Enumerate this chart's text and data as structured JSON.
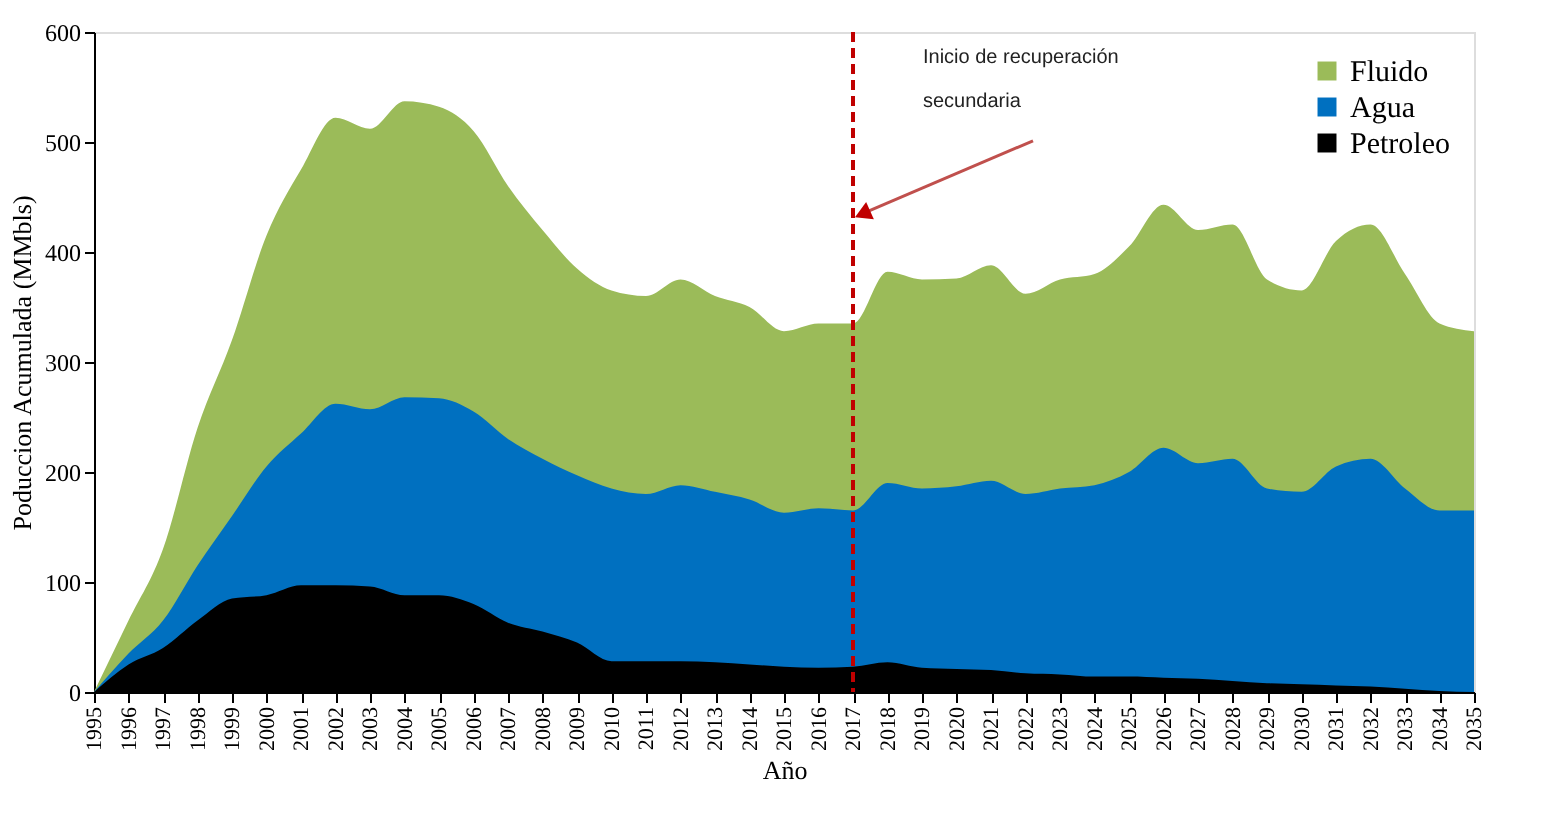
{
  "chart_data": {
    "type": "area",
    "xlabel": "Año",
    "ylabel": "Poduccion Acumulada (MMbls)",
    "categories": [
      "1995",
      "1996",
      "1997",
      "1998",
      "1999",
      "2000",
      "2001",
      "2002",
      "2003",
      "2004",
      "2005",
      "2006",
      "2007",
      "2008",
      "2009",
      "2010",
      "2011",
      "2012",
      "2013",
      "2014",
      "2015",
      "2016",
      "2017",
      "2018",
      "2019",
      "2020",
      "2021",
      "2022",
      "2023",
      "2024",
      "2025",
      "2026",
      "2027",
      "2028",
      "2029",
      "2030",
      "2031",
      "2032",
      "2033",
      "2034",
      "2035"
    ],
    "series": [
      {
        "name": "Fluido",
        "color": "#9bbb59",
        "values": [
          0,
          65,
          130,
          240,
          320,
          415,
          475,
          522,
          512,
          537,
          532,
          510,
          460,
          420,
          385,
          365,
          360,
          375,
          360,
          350,
          328,
          335,
          335,
          382,
          375,
          376,
          388,
          362,
          375,
          380,
          405,
          443,
          420,
          425,
          375,
          365,
          410,
          425,
          380,
          335,
          328
        ]
      },
      {
        "name": "Agua",
        "color": "#0070c0",
        "values": [
          0,
          35,
          65,
          115,
          160,
          205,
          235,
          262,
          257,
          268,
          267,
          255,
          230,
          212,
          197,
          185,
          180,
          188,
          182,
          175,
          163,
          167,
          165,
          190,
          185,
          187,
          192,
          180,
          185,
          188,
          200,
          222,
          208,
          212,
          185,
          182,
          205,
          212,
          185,
          165,
          165
        ]
      },
      {
        "name": "Petroleo",
        "color": "#000000",
        "values": [
          0,
          25,
          40,
          65,
          85,
          88,
          97,
          97,
          96,
          88,
          88,
          80,
          63,
          55,
          45,
          28,
          28,
          28,
          27,
          25,
          23,
          22,
          23,
          27,
          22,
          21,
          20,
          17,
          16,
          14,
          14,
          13,
          12,
          10,
          8,
          7,
          6,
          5,
          3,
          1,
          0
        ]
      }
    ],
    "ylim": [
      0,
      600
    ],
    "yticks": [
      0,
      100,
      200,
      300,
      400,
      500,
      600
    ],
    "grid": false,
    "legend": "top right",
    "ref_lines": [
      {
        "axis": "x",
        "value": "2017",
        "color": "#c00000",
        "line_style": "dashed"
      }
    ],
    "annotations": [
      "Inicio de recuperación\nsecundaria"
    ]
  }
}
